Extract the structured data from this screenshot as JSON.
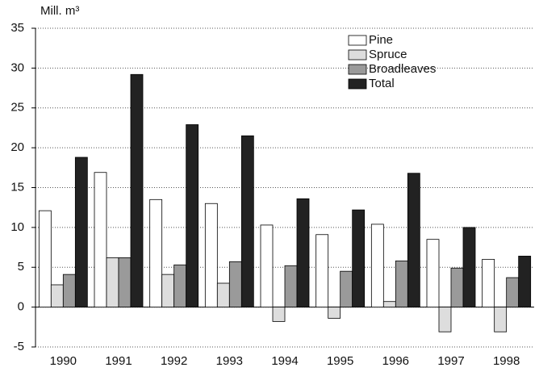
{
  "chart_data": {
    "type": "bar",
    "y_label": "Mill. m³",
    "categories": [
      "1990",
      "1991",
      "1992",
      "1993",
      "1994",
      "1995",
      "1996",
      "1997",
      "1998"
    ],
    "series": [
      {
        "name": "Pine",
        "color": "#ffffff",
        "values": [
          12.1,
          16.9,
          13.5,
          13.0,
          10.3,
          9.1,
          10.4,
          8.5,
          6.0
        ]
      },
      {
        "name": "Spruce",
        "color": "#dddddd",
        "values": [
          2.8,
          6.2,
          4.1,
          3.0,
          -1.8,
          -1.4,
          0.7,
          -3.1,
          -3.1
        ]
      },
      {
        "name": "Broadleaves",
        "color": "#9a9a9a",
        "values": [
          4.1,
          6.2,
          5.3,
          5.7,
          5.2,
          4.5,
          5.8,
          4.9,
          3.7
        ]
      },
      {
        "name": "Total",
        "color": "#222222",
        "values": [
          18.8,
          29.2,
          22.9,
          21.5,
          13.6,
          12.2,
          16.8,
          10.0,
          6.4
        ]
      }
    ],
    "ylim": [
      -5,
      35
    ],
    "yticks": [
      -5,
      0,
      5,
      10,
      15,
      20,
      25,
      30,
      35
    ],
    "grid": true,
    "legend": "top-right"
  }
}
